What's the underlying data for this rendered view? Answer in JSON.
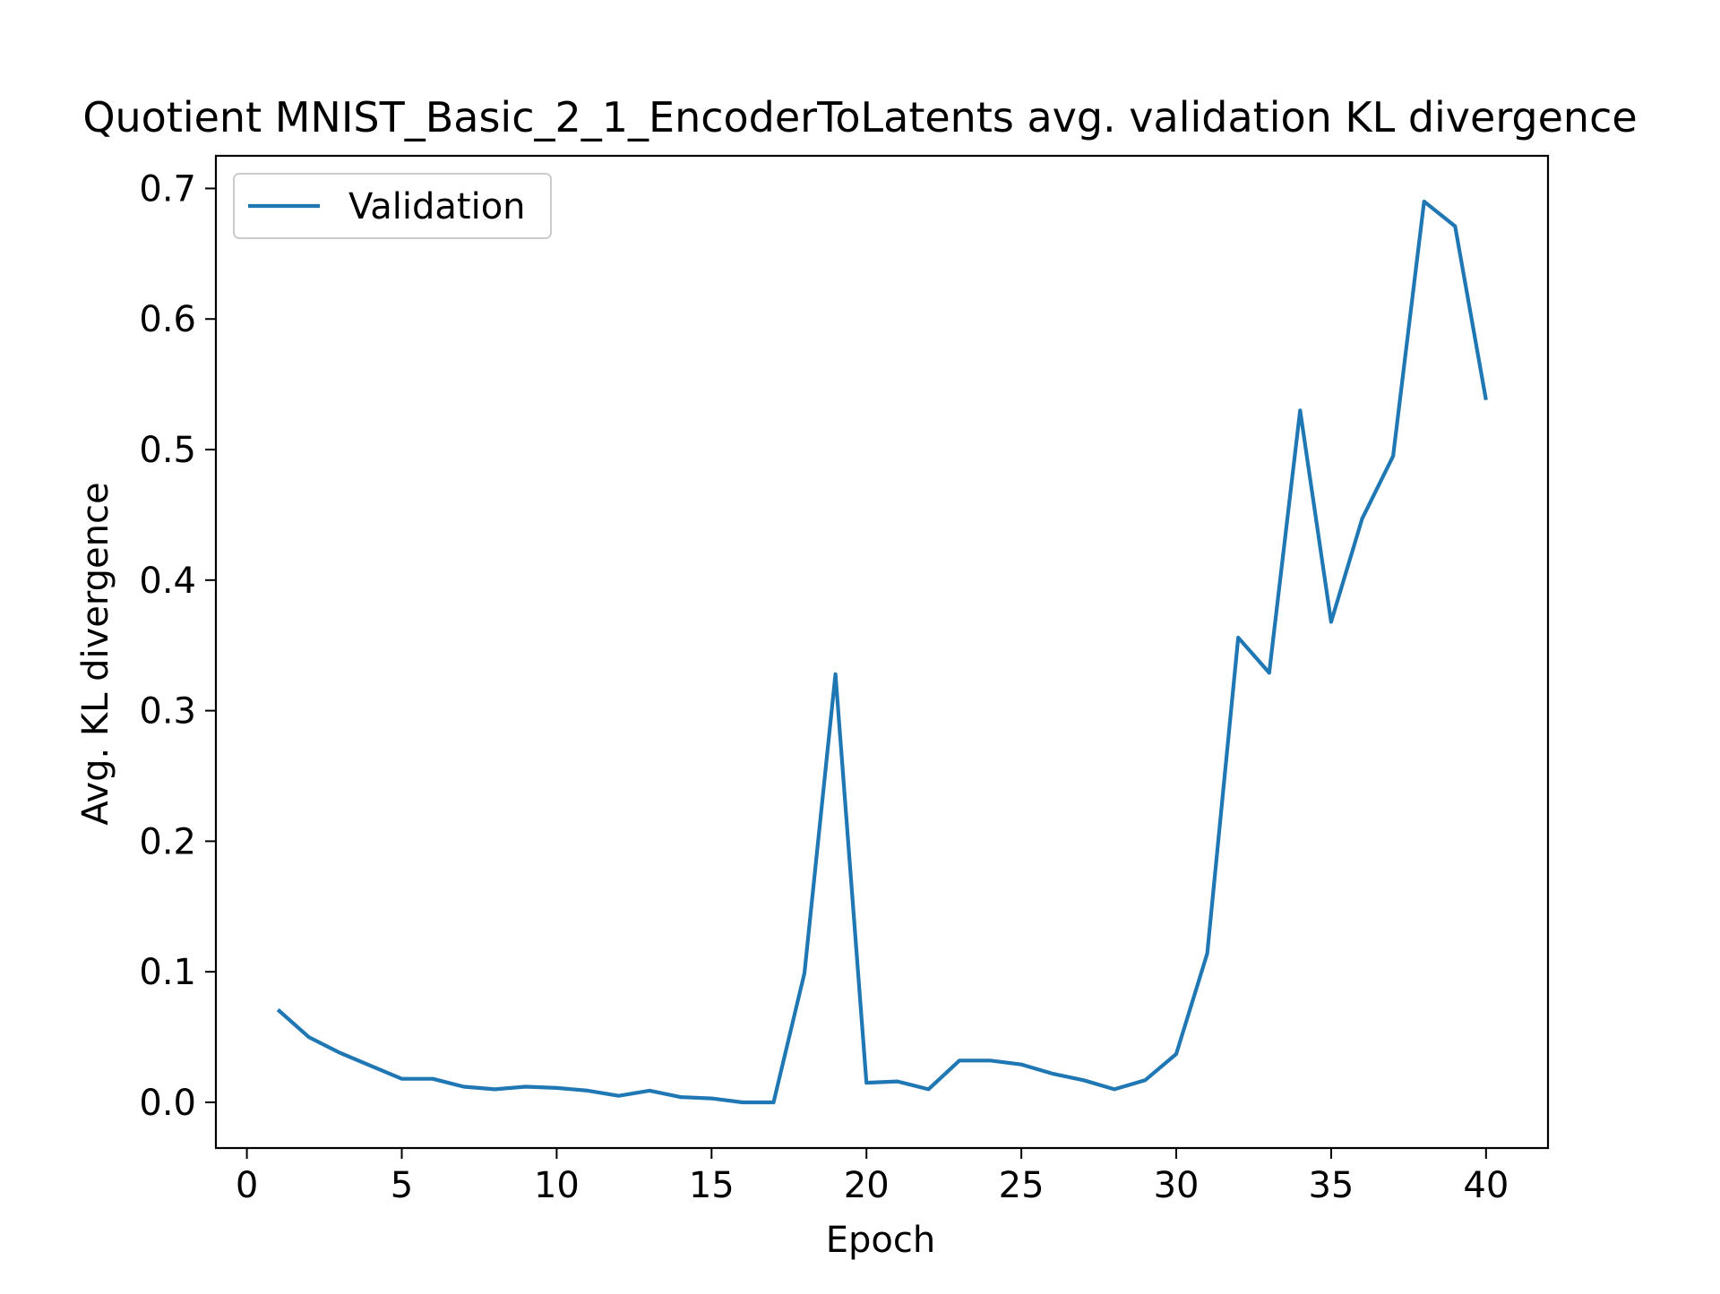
{
  "chart_data": {
    "type": "line",
    "title": "Quotient MNIST_Basic_2_1_EncoderToLatents avg. validation KL divergence",
    "xlabel": "Epoch",
    "ylabel": "Avg. KL divergence",
    "xlim": [
      -1,
      42
    ],
    "ylim": [
      -0.035,
      0.725
    ],
    "xticks": [
      0,
      5,
      10,
      15,
      20,
      25,
      30,
      35,
      40
    ],
    "yticks": [
      0.0,
      0.1,
      0.2,
      0.3,
      0.4,
      0.5,
      0.6,
      0.7
    ],
    "xtick_labels": [
      "0",
      "5",
      "10",
      "15",
      "20",
      "25",
      "30",
      "35",
      "40"
    ],
    "ytick_labels": [
      "0.0",
      "0.1",
      "0.2",
      "0.3",
      "0.4",
      "0.5",
      "0.6",
      "0.7"
    ],
    "grid": false,
    "legend_position": "top-left",
    "colors": {
      "series": "#1f77b4",
      "axes": "#000000",
      "legend_border": "#cccccc"
    },
    "series": [
      {
        "name": "Validation",
        "x": [
          1,
          2,
          3,
          4,
          5,
          6,
          7,
          8,
          9,
          10,
          11,
          12,
          13,
          14,
          15,
          16,
          17,
          18,
          19,
          20,
          21,
          22,
          23,
          24,
          25,
          26,
          27,
          28,
          29,
          30,
          31,
          32,
          33,
          34,
          35,
          36,
          37,
          38,
          39,
          40
        ],
        "y": [
          0.071,
          0.05,
          0.038,
          0.028,
          0.018,
          0.018,
          0.012,
          0.01,
          0.012,
          0.011,
          0.009,
          0.005,
          0.009,
          0.004,
          0.003,
          0.0,
          0.0,
          0.099,
          0.328,
          0.015,
          0.016,
          0.01,
          0.032,
          0.032,
          0.029,
          0.022,
          0.017,
          0.01,
          0.017,
          0.037,
          0.114,
          0.356,
          0.329,
          0.53,
          0.368,
          0.447,
          0.495,
          0.69,
          0.671,
          0.538
        ]
      }
    ]
  }
}
